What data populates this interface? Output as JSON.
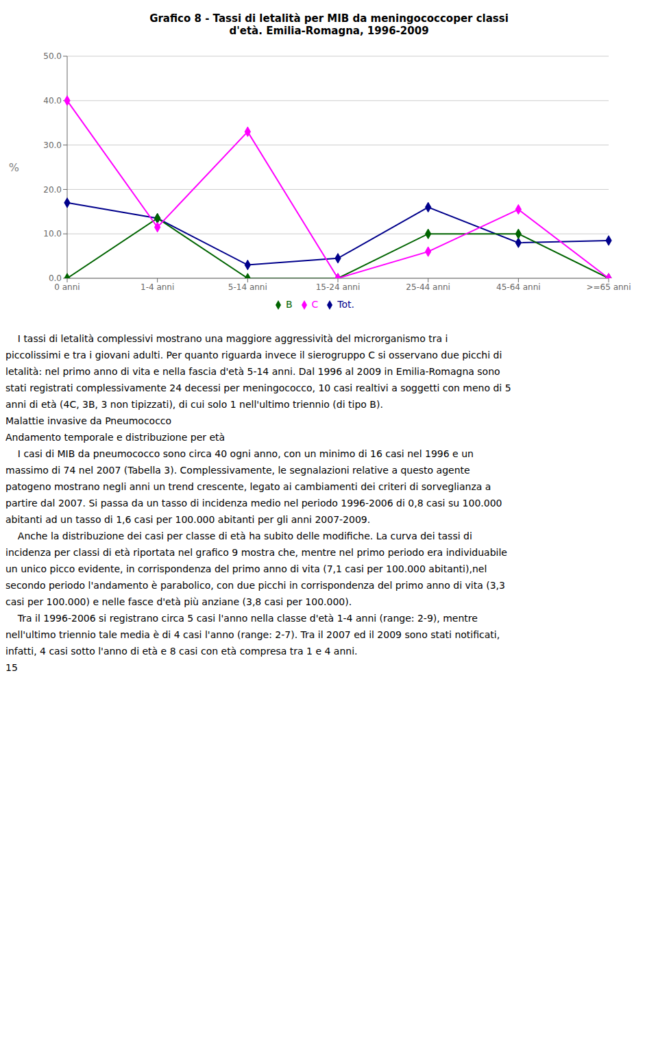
{
  "chart_data": {
    "type": "line",
    "title": "Grafico 8 - Tassi di letalità per MIB da meningococcoper classi\nd'età. Emilia-Romagna, 1996-2009",
    "y_label": "%",
    "categories": [
      "0 anni",
      "1-4 anni",
      "5-14 anni",
      "15-24 anni",
      "25-44 anni",
      "45-64 anni",
      ">=65 anni"
    ],
    "series": [
      {
        "name": "Tot.",
        "color": "#00008B",
        "marker": "diamond",
        "values": [
          17.0,
          13.5,
          3.0,
          4.5,
          16.0,
          8.0,
          8.5
        ]
      },
      {
        "name": "B",
        "color": "#006400",
        "marker": "diamond",
        "values": [
          0.0,
          13.5,
          0.0,
          0.0,
          10.0,
          10.0,
          0.0
        ]
      },
      {
        "name": "C",
        "color": "#FF00FF",
        "marker": "diamond",
        "values": [
          40.0,
          11.5,
          33.0,
          0.0,
          6.0,
          15.5,
          0.0
        ]
      }
    ],
    "ylim": [
      0,
      50
    ],
    "yticks": [
      {
        "value": 0,
        "label": "0.0"
      },
      {
        "value": 10,
        "label": "10.0"
      },
      {
        "value": 20,
        "label": "20.0"
      },
      {
        "value": 30,
        "label": "30.0"
      },
      {
        "value": 40,
        "label": "40.0"
      },
      {
        "value": 50,
        "label": "50.0"
      }
    ],
    "grid": true,
    "legend": "bottom",
    "annotations": [
      "    I tassi di letalità complessivi mostrano una maggiore aggressività del microrganismo tra i",
      "piccolissimi e tra i giovani adulti. Per quanto riguarda invece il sierogruppo C si osservano due picchi di",
      "letalità: nel primo anno di vita e nella fascia d'età 5-14 anni. Dal 1996 al 2009 in Emilia-Romagna sono",
      "stati registrati complessivamente 24 decessi per meningococco, 10 casi realtivi a soggetti con meno di 5",
      "anni di età (4C, 3B, 3 non tipizzati), di cui solo 1 nell'ultimo triennio (di tipo B).",
      "Malattie invasive da Pneumococco",
      "Andamento temporale e distribuzione per età",
      "    I casi di MIB da pneumococco sono circa 40 ogni anno, con un minimo di 16 casi nel 1996 e un",
      "massimo di 74 nel 2007 (Tabella 3). Complessivamente, le segnalazioni relative a questo agente",
      "patogeno mostrano negli anni un trend crescente, legato ai cambiamenti dei criteri di sorveglianza a",
      "partire dal 2007. Si passa da un tasso di incidenza medio nel periodo 1996-2006 di 0,8 casi su 100.000",
      "abitanti ad un tasso di 1,6 casi per 100.000 abitanti per gli anni 2007-2009.",
      "    Anche la distribuzione dei casi per classe di età ha subito delle modifiche. La curva dei tassi di",
      "incidenza per classi di età riportata nel grafico 9 mostra che, mentre nel primo periodo era individuabile",
      "un unico picco evidente, in corrispondenza del primo anno di vita (7,1 casi per 100.000 abitanti),nel",
      "secondo periodo l'andamento è parabolico, con due picchi in corrispondenza del primo anno di vita (3,3",
      "casi per 100.000) e nelle fasce d'età più anziane (3,8 casi per 100.000).",
      "    Tra il 1996-2006 si registrano circa 5 casi l'anno nella classe d'età 1-4 anni (range: 2-9), mentre",
      "nell'ultimo triennio tale media è di 4 casi l'anno (range: 2-7). Tra il 2007 ed il 2009 sono stati notificati,",
      "infatti, 4 casi sotto l'anno di età e 8 casi con età compresa tra 1 e 4 anni.",
      "15"
    ]
  }
}
